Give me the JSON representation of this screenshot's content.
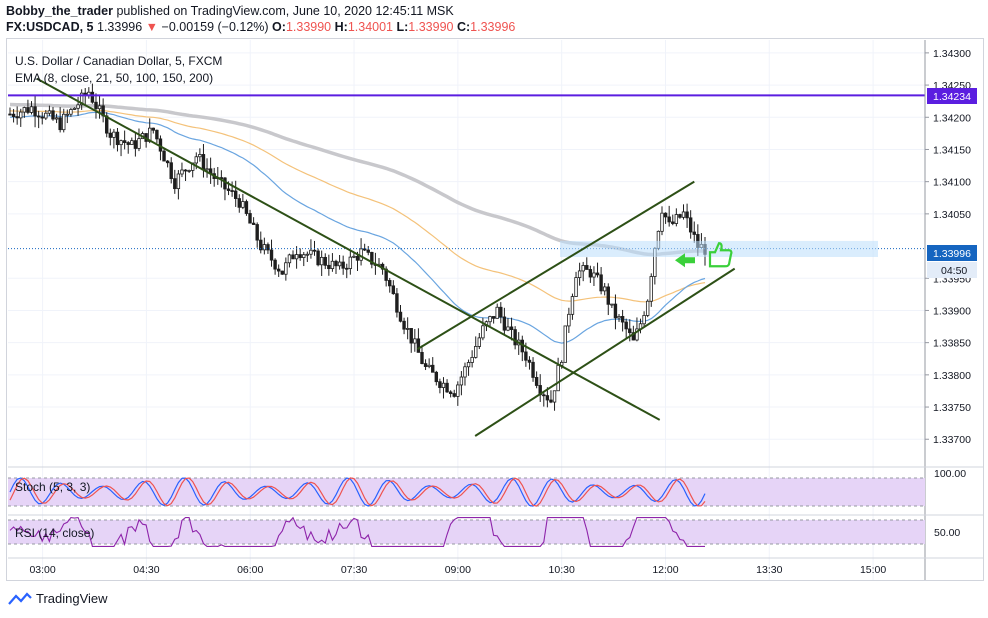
{
  "header": {
    "author": "Bobby_the_trader",
    "published_text": "published on TradingView.com, June 10, 2020 12:45:11 MSK",
    "symbol": "FX:USDCAD, 5",
    "last": "1.33996",
    "change_arrow": "▼",
    "change": "−0.00159 (−0.12%)",
    "o_label": "O:",
    "o": "1.33990",
    "h_label": "H:",
    "h": "1.34001",
    "l_label": "L:",
    "l": "1.33990",
    "c_label": "C:",
    "c": "1.33996"
  },
  "legend": {
    "title": "U.S. Dollar / Canadian Dollar, 5, FXCM",
    "ema": "EMA (8, close, 21, 50, 100, 150, 200)"
  },
  "stoch": {
    "label": "Stoch (5, 3, 3)",
    "level": "100.00"
  },
  "rsi": {
    "label": "RSI (14, close)",
    "level": "50.00"
  },
  "footer": {
    "brand": "TradingView"
  },
  "colors": {
    "up": "#26a69a",
    "down": "#ef5350",
    "candle": "#1e1e1e",
    "resistance": "#5b1ee0",
    "trend": "#2d5016",
    "price_tag": "#1565c0",
    "ema_gray": "#c8c8cc",
    "ema_orange": "#f4c27a",
    "ema_blue": "#6aa5e0",
    "stoch_band": "#e6d4f7",
    "stoch_k": "#2962ff",
    "stoch_d": "#ef5350",
    "rsi": "#8e24aa",
    "arrow": "#3ad03a"
  },
  "chart_data": {
    "type": "candlestick",
    "title": "U.S. Dollar / Canadian Dollar, 5, FXCM",
    "x_ticks": [
      "03:00",
      "04:30",
      "06:00",
      "07:30",
      "09:00",
      "10:30",
      "12:00",
      "13:30",
      "15:00"
    ],
    "y_ticks": [
      "1.34300",
      "1.34250",
      "1.34200",
      "1.34150",
      "1.34100",
      "1.34050",
      "1.33950",
      "1.33900",
      "1.33850",
      "1.33800",
      "1.33750",
      "1.33700"
    ],
    "ylim": [
      1.3366,
      1.3432
    ],
    "resistance_level": "1.34234",
    "current_price": "1.33996",
    "countdown": "04:50",
    "trendlines": [
      {
        "from": [
          "02:55",
          1.3426
        ],
        "to": [
          "11:55",
          1.3373
        ]
      },
      {
        "from": [
          "08:25",
          1.3384
        ],
        "to": [
          "12:25",
          1.341
        ]
      },
      {
        "from": [
          "09:15",
          1.33705
        ],
        "to": [
          "13:00",
          1.33965
        ]
      }
    ],
    "price_path": [
      [
        0,
        1.34205
      ],
      [
        6,
        1.34215
      ],
      [
        14,
        1.3419
      ],
      [
        22,
        1.3424
      ],
      [
        28,
        1.34175
      ],
      [
        34,
        1.34155
      ],
      [
        40,
        1.3418
      ],
      [
        46,
        1.341
      ],
      [
        52,
        1.3414
      ],
      [
        58,
        1.341
      ],
      [
        64,
        1.3407
      ],
      [
        70,
        1.34
      ],
      [
        76,
        1.3396
      ],
      [
        80,
        1.33995
      ],
      [
        86,
        1.3398
      ],
      [
        92,
        1.33965
      ],
      [
        98,
        1.3399
      ],
      [
        104,
        1.33965
      ],
      [
        110,
        1.3388
      ],
      [
        116,
        1.3381
      ],
      [
        120,
        1.3379
      ],
      [
        124,
        1.33775
      ],
      [
        128,
        1.3382
      ],
      [
        132,
        1.3387
      ],
      [
        136,
        1.339
      ],
      [
        140,
        1.3386
      ],
      [
        144,
        1.3383
      ],
      [
        148,
        1.3378
      ],
      [
        151,
        1.3376
      ],
      [
        154,
        1.3383
      ],
      [
        156,
        1.339
      ],
      [
        158,
        1.3396
      ],
      [
        162,
        1.3396
      ],
      [
        166,
        1.3393
      ],
      [
        168,
        1.339
      ],
      [
        172,
        1.3387
      ],
      [
        174,
        1.3385
      ],
      [
        176,
        1.3388
      ],
      [
        178,
        1.3392
      ],
      [
        180,
        1.34
      ],
      [
        182,
        1.3406
      ],
      [
        184,
        1.3403
      ],
      [
        188,
        1.3405
      ],
      [
        192,
        1.34
      ],
      [
        194,
        1.33996
      ]
    ]
  }
}
